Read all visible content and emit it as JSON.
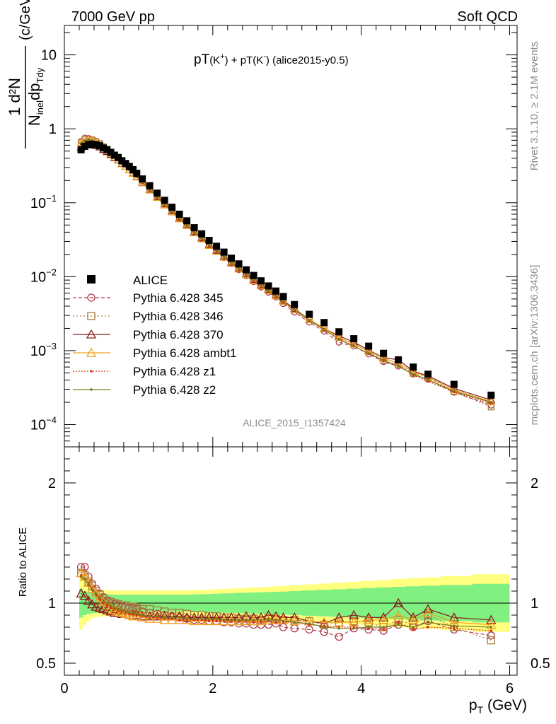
{
  "header": {
    "left": "7000 GeV pp",
    "right": "Soft QCD"
  },
  "side": {
    "rivet": "Rivet 3.1.10, ≥ 2.1M events",
    "mcplots": "mcplots.cern.ch [arXiv:1306.3436]"
  },
  "chart_data": {
    "type": "scatter",
    "title_prefix": "pT",
    "title_k1": "(K",
    "title_k1_sup": "+",
    "title_mid": ") + pT(K",
    "title_k2_sup": "-",
    "title_suffix": ") (alice2015-y0.5)",
    "analysis_tag": "ALICE_2015_I1357424",
    "xlabel": "p",
    "xlabel_sub": "T",
    "xlabel_unit": " (GeV)",
    "ylabel_num": "1  d²N",
    "ylabel_den": "N",
    "ylabel_den_sub": "inel",
    "ylabel_den_rest": "dp",
    "ylabel_den_sub2": "Tdy",
    "ylabel_unit": "(c/GeV)",
    "ratio_ylabel": "Ratio to ALICE",
    "xlim": [
      0,
      6.1
    ],
    "ylim_main": [
      5e-05,
      25
    ],
    "ylim_ratio": [
      0.4,
      2.3
    ],
    "yscale_main": "log",
    "x_ticks": [
      "0",
      "2",
      "4",
      "6"
    ],
    "main_y_ticks": [
      {
        "base": "10",
        "exp": "",
        "value": 10
      },
      {
        "base": "1",
        "exp": "",
        "value": 1
      },
      {
        "base": "10",
        "exp": "−1",
        "value": 0.1
      },
      {
        "base": "10",
        "exp": "−2",
        "value": 0.01
      },
      {
        "base": "10",
        "exp": "−3",
        "value": 0.001
      },
      {
        "base": "10",
        "exp": "−4",
        "value": 0.0001
      }
    ],
    "ratio_y_ticks": [
      {
        "label": "2",
        "value": 2
      },
      {
        "label": "1",
        "value": 1
      },
      {
        "label": "0.5",
        "value": 0.5
      }
    ],
    "x": [
      0.225,
      0.275,
      0.325,
      0.375,
      0.425,
      0.475,
      0.525,
      0.575,
      0.625,
      0.675,
      0.725,
      0.775,
      0.825,
      0.875,
      0.925,
      0.975,
      1.05,
      1.15,
      1.25,
      1.35,
      1.45,
      1.55,
      1.65,
      1.75,
      1.85,
      1.95,
      2.05,
      2.15,
      2.25,
      2.35,
      2.45,
      2.55,
      2.65,
      2.75,
      2.85,
      2.95,
      3.1,
      3.3,
      3.5,
      3.7,
      3.9,
      4.1,
      4.3,
      4.5,
      4.7,
      4.9,
      5.25,
      5.75
    ],
    "data_values": [
      0.52,
      0.58,
      0.61,
      0.62,
      0.61,
      0.59,
      0.55,
      0.52,
      0.48,
      0.44,
      0.41,
      0.37,
      0.34,
      0.31,
      0.28,
      0.25,
      0.21,
      0.17,
      0.135,
      0.108,
      0.087,
      0.07,
      0.057,
      0.046,
      0.038,
      0.031,
      0.0258,
      0.0215,
      0.0178,
      0.0149,
      0.0124,
      0.0104,
      0.0088,
      0.0075,
      0.0064,
      0.0054,
      0.0042,
      0.0031,
      0.0024,
      0.0018,
      0.00145,
      0.00115,
      0.00092,
      0.00075,
      0.0006,
      0.00048,
      0.00035,
      0.00025
    ],
    "band_inner": [
      0.12,
      0.1,
      0.09,
      0.085,
      0.08,
      0.08,
      0.075,
      0.075,
      0.07,
      0.07,
      0.07,
      0.07,
      0.07,
      0.07,
      0.07,
      0.07,
      0.07,
      0.07,
      0.07,
      0.07,
      0.07,
      0.07,
      0.07,
      0.072,
      0.074,
      0.076,
      0.078,
      0.08,
      0.082,
      0.084,
      0.086,
      0.088,
      0.09,
      0.092,
      0.094,
      0.096,
      0.1,
      0.105,
      0.11,
      0.115,
      0.12,
      0.125,
      0.13,
      0.135,
      0.14,
      0.145,
      0.15,
      0.16
    ],
    "band_outer": [
      0.22,
      0.18,
      0.15,
      0.13,
      0.12,
      0.115,
      0.11,
      0.11,
      0.105,
      0.105,
      0.105,
      0.105,
      0.105,
      0.105,
      0.105,
      0.105,
      0.105,
      0.105,
      0.105,
      0.105,
      0.105,
      0.105,
      0.105,
      0.108,
      0.11,
      0.112,
      0.115,
      0.118,
      0.12,
      0.123,
      0.126,
      0.13,
      0.133,
      0.136,
      0.14,
      0.143,
      0.148,
      0.155,
      0.163,
      0.17,
      0.178,
      0.185,
      0.192,
      0.2,
      0.207,
      0.214,
      0.225,
      0.24
    ],
    "data_label": "ALICE",
    "series": [
      {
        "name": "Pythia 6.428 345",
        "color": "#b03a4c",
        "marker": "circle",
        "dash": "5,3",
        "ratio": [
          1.3,
          1.3,
          1.22,
          1.16,
          1.12,
          1.08,
          1.05,
          1.02,
          1.0,
          0.99,
          0.98,
          0.97,
          0.97,
          0.96,
          0.96,
          0.95,
          0.93,
          0.92,
          0.91,
          0.9,
          0.89,
          0.88,
          0.87,
          0.86,
          0.86,
          0.85,
          0.85,
          0.84,
          0.84,
          0.83,
          0.83,
          0.82,
          0.82,
          0.82,
          0.83,
          0.8,
          0.79,
          0.78,
          0.76,
          0.72,
          0.79,
          0.78,
          0.77,
          0.82,
          0.8,
          0.85,
          0.78,
          0.73
        ]
      },
      {
        "name": "Pythia 6.428 346",
        "color": "#a67c3a",
        "marker": "square",
        "dash": "2,3",
        "ratio": [
          1.25,
          1.23,
          1.18,
          1.14,
          1.1,
          1.07,
          1.04,
          1.02,
          1.01,
          1.0,
          0.99,
          0.98,
          0.98,
          0.97,
          0.97,
          0.96,
          0.95,
          0.95,
          0.94,
          0.93,
          0.92,
          0.92,
          0.91,
          0.9,
          0.9,
          0.89,
          0.89,
          0.88,
          0.88,
          0.87,
          0.87,
          0.87,
          0.86,
          0.88,
          0.87,
          0.86,
          0.86,
          0.85,
          0.82,
          0.84,
          0.85,
          0.84,
          0.8,
          0.86,
          0.82,
          0.9,
          0.8,
          0.69
        ]
      },
      {
        "name": "Pythia 6.428 370",
        "color": "#8b1a1a",
        "marker": "triangle",
        "dash": "",
        "ratio": [
          1.08,
          1.06,
          1.02,
          0.99,
          0.97,
          0.96,
          0.95,
          0.94,
          0.93,
          0.92,
          0.92,
          0.91,
          0.91,
          0.9,
          0.9,
          0.9,
          0.89,
          0.89,
          0.89,
          0.89,
          0.89,
          0.89,
          0.88,
          0.88,
          0.88,
          0.88,
          0.88,
          0.88,
          0.88,
          0.88,
          0.89,
          0.88,
          0.88,
          0.9,
          0.89,
          0.88,
          0.88,
          0.85,
          0.83,
          0.88,
          0.9,
          0.88,
          0.88,
          1.0,
          0.88,
          0.95,
          0.88,
          0.86
        ]
      },
      {
        "name": "Pythia 6.428 ambt1",
        "color": "#f0a020",
        "marker": "triangle",
        "dash": "",
        "ratio": [
          1.25,
          1.22,
          1.17,
          1.12,
          1.08,
          1.04,
          1.01,
          0.98,
          0.96,
          0.94,
          0.93,
          0.92,
          0.91,
          0.9,
          0.89,
          0.89,
          0.88,
          0.87,
          0.87,
          0.86,
          0.86,
          0.86,
          0.86,
          0.85,
          0.85,
          0.85,
          0.85,
          0.85,
          0.85,
          0.85,
          0.85,
          0.85,
          0.85,
          0.86,
          0.86,
          0.86,
          0.85,
          0.85,
          0.84,
          0.84,
          0.84,
          0.86,
          0.86,
          0.9,
          0.86,
          0.92,
          0.84,
          0.82
        ]
      },
      {
        "name": "Pythia 6.428 z1",
        "color": "#e03010",
        "marker": "dot",
        "dash": "2,2",
        "ratio": [
          1.23,
          1.2,
          1.15,
          1.11,
          1.07,
          1.03,
          1.0,
          0.98,
          0.96,
          0.95,
          0.94,
          0.93,
          0.92,
          0.91,
          0.91,
          0.9,
          0.89,
          0.88,
          0.88,
          0.87,
          0.87,
          0.86,
          0.86,
          0.86,
          0.86,
          0.85,
          0.85,
          0.85,
          0.85,
          0.85,
          0.85,
          0.84,
          0.84,
          0.85,
          0.84,
          0.84,
          0.84,
          0.82,
          0.81,
          0.8,
          0.8,
          0.79,
          0.78,
          0.84,
          0.78,
          0.8,
          0.79,
          0.77
        ]
      },
      {
        "name": "Pythia 6.428 z2",
        "color": "#7a7a1a",
        "marker": "dot",
        "dash": "",
        "ratio": [
          1.22,
          1.2,
          1.16,
          1.12,
          1.08,
          1.05,
          1.02,
          1.0,
          0.98,
          0.96,
          0.95,
          0.94,
          0.93,
          0.92,
          0.92,
          0.91,
          0.9,
          0.89,
          0.89,
          0.88,
          0.88,
          0.88,
          0.87,
          0.87,
          0.87,
          0.87,
          0.87,
          0.86,
          0.86,
          0.86,
          0.86,
          0.86,
          0.86,
          0.86,
          0.86,
          0.85,
          0.84,
          0.83,
          0.8,
          0.79,
          0.79,
          0.8,
          0.8,
          0.82,
          0.8,
          0.84,
          0.81,
          0.8
        ]
      }
    ]
  }
}
